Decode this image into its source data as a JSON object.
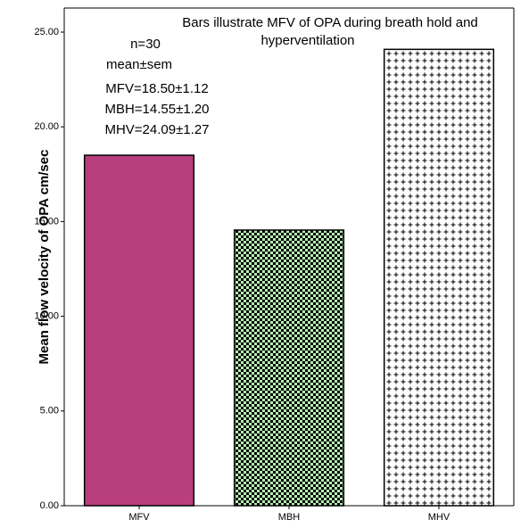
{
  "chart_data": {
    "type": "bar",
    "title_lines": [
      "Bars illustrate MFV of OPA during breath hold and",
      "hyperventilation"
    ],
    "ylabel": "Mean flow velocity of OPA cm/sec",
    "xlabel": "",
    "categories": [
      "MFV",
      "MBH",
      "MHV"
    ],
    "values": [
      18.5,
      14.55,
      24.09
    ],
    "ylim": [
      0,
      25
    ],
    "yticks": [
      "0.00",
      "5.00",
      "10.00",
      "15.00",
      "20.00",
      "25.00"
    ],
    "bar_styles": [
      {
        "fill": "#b83e7e",
        "pattern": "solid"
      },
      {
        "fill": "#b8f0b8",
        "pattern": "checker"
      },
      {
        "fill": "#ffffff",
        "pattern": "cross"
      }
    ],
    "annotations": [
      "n=30",
      "mean±sem",
      "MFV=18.50±1.12",
      "MBH=14.55±1.20",
      "MHV=24.09±1.27"
    ],
    "grid": false,
    "legend": "none"
  }
}
